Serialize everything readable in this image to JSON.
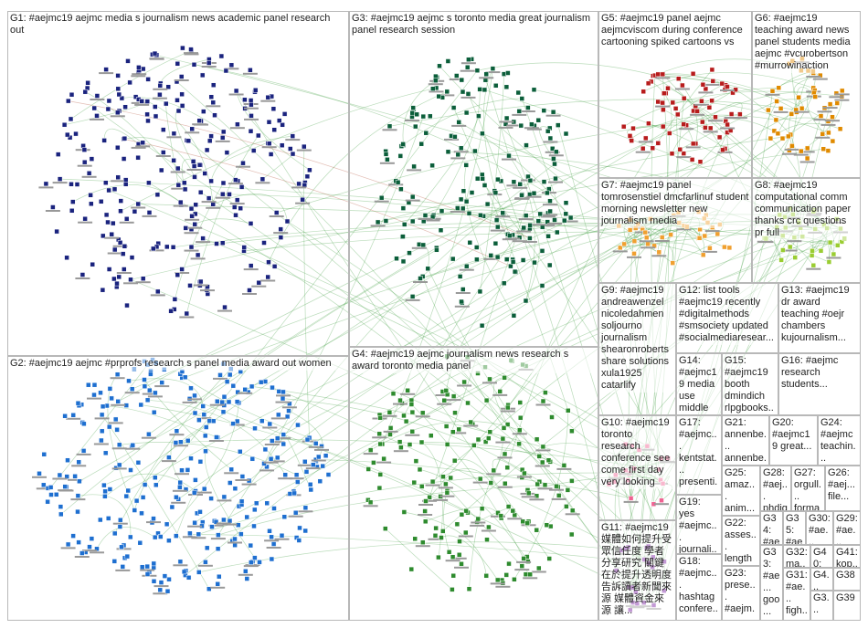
{
  "groups": [
    {
      "label": "G1: #aejmc19 aejmc media s journalism news academic panel research out"
    },
    {
      "label": "G3: #aejmc19 aejmc s toronto media great journalism panel research session"
    },
    {
      "label": "G5: #aejmc19 panel aejmc aejmcviscom during conference cartooning spiked cartoons vs"
    },
    {
      "label": "G6: #aejmc19 teaching award news panel students media aejmc #vcurobertson #murrowinaction"
    },
    {
      "label": "G7: #aejmc19 panel tomrosenstiel dmcfarlinuf student morning newsletter new journalism media"
    },
    {
      "label": "G8: #aejmc19 computational comm communication paper thanks crc questions pr full"
    },
    {
      "label": "G9: #aejmc19 andreawenzel nicoledahmen soljourno journalism shearonroberts share solutions xula1925 catarlify"
    },
    {
      "label": "G12: list tools #aejmc19 recently #digitalmethods #smsociety updated #socialmediaresear..."
    },
    {
      "label": "G13: #aejmc19 dr award teaching #oejr chambers kujournalism..."
    },
    {
      "label": "G14: #aejmc19 media use middle east nuqatar s..."
    },
    {
      "label": "G15: #aejmc19 booth dmindich rlpgbooks..."
    },
    {
      "label": "G16: #aejmc research students..."
    },
    {
      "label": "G2: #aejmc19 aejmc #prprofs research s panel media award out women"
    },
    {
      "label": "G4: #aejmc19 aejmc journalism news research s award toronto media panel"
    },
    {
      "label": "G10: #aejmc19 toronto research conference see come first day very looking"
    },
    {
      "label": "G17: #aejmc... kentstat... presenti... professor kentco..."
    },
    {
      "label": "G21: annenbe... annenbe..."
    },
    {
      "label": "G20: #aejmc19 great..."
    },
    {
      "label": "G24: #aejmc teachin..."
    },
    {
      "label": "G25: amaz... anim... karas..."
    },
    {
      "label": "G28: #aej... phdig..."
    },
    {
      "label": "G27: orgull... forma..."
    },
    {
      "label": "G26: #aej... file..."
    },
    {
      "label": "G19: yes #aejmc... journali... beyonc..."
    },
    {
      "label": "G22: asses... length compl..."
    },
    {
      "label": "G18: #aejmc... hashtag confere... toronto..."
    },
    {
      "label": "G23: prese... #aejm... teachi..."
    },
    {
      "label": "G11: #aejmc19 媒體如何提升受眾信任度 學者分享研究 關鍵在於提升透明度 告訴讀者新聞來源 媒體資金來源 讓..."
    },
    {
      "label": "G34: #ae..."
    },
    {
      "label": "G35: #ae..."
    },
    {
      "label": "G30: #ae..."
    },
    {
      "label": "G29: #ae..."
    },
    {
      "label": "G33: #ae... goo..."
    },
    {
      "label": "G32: ma..."
    },
    {
      "label": "G40: kop..."
    },
    {
      "label": "G41: kop..."
    },
    {
      "label": "G31: #ae... figh..."
    },
    {
      "label": "G4..."
    },
    {
      "label": "G38"
    },
    {
      "label": "G3..."
    },
    {
      "label": "G39"
    }
  ]
}
